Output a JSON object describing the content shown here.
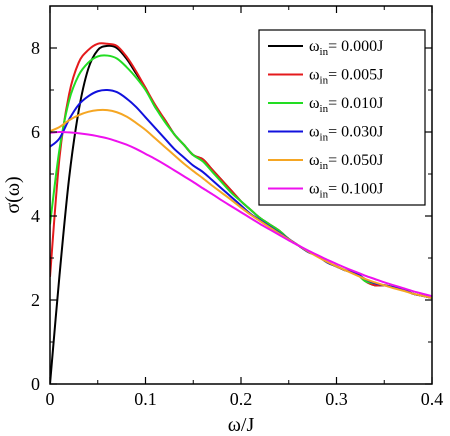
{
  "chart_data": {
    "type": "line",
    "title": "",
    "xlabel": "ω/J",
    "ylabel": "σ(ω)",
    "xlim": [
      0,
      0.4
    ],
    "ylim": [
      0,
      9
    ],
    "xticks": [
      0,
      0.1,
      0.2,
      0.3,
      0.4
    ],
    "xtick_labels": [
      "0",
      "0.1",
      "0.2",
      "0.3",
      "0.4"
    ],
    "yticks": [
      0,
      2,
      4,
      6,
      8
    ],
    "ytick_labels": [
      "0",
      "2",
      "4",
      "6",
      "8"
    ],
    "grid": false,
    "legend_position": "top-right",
    "legend_prefix": "ω",
    "legend_subscript": "in",
    "series": [
      {
        "name": "= 0.000J",
        "color": "#000000",
        "x": [
          0.0,
          0.01,
          0.02,
          0.03,
          0.04,
          0.05,
          0.06,
          0.07,
          0.08,
          0.09,
          0.1,
          0.11,
          0.12,
          0.13,
          0.14,
          0.15,
          0.16,
          0.17,
          0.18,
          0.19,
          0.2,
          0.21,
          0.22,
          0.23,
          0.24,
          0.25,
          0.26,
          0.27,
          0.28,
          0.29,
          0.3,
          0.31,
          0.32,
          0.33,
          0.34,
          0.35,
          0.36,
          0.37,
          0.38,
          0.39,
          0.4
        ],
        "y": [
          0.0,
          2.6,
          4.9,
          6.5,
          7.5,
          7.95,
          8.05,
          8.0,
          7.75,
          7.4,
          7.05,
          6.6,
          6.3,
          5.95,
          5.7,
          5.45,
          5.35,
          5.1,
          4.85,
          4.6,
          4.35,
          4.15,
          3.95,
          3.8,
          3.65,
          3.45,
          3.3,
          3.15,
          3.05,
          2.9,
          2.8,
          2.7,
          2.65,
          2.45,
          2.35,
          2.35,
          2.3,
          2.25,
          2.15,
          2.1,
          2.05
        ]
      },
      {
        "name": "= 0.005J",
        "color": "#e41a1c",
        "x": [
          0.0,
          0.01,
          0.02,
          0.03,
          0.04,
          0.05,
          0.06,
          0.07,
          0.08,
          0.09,
          0.1,
          0.11,
          0.12,
          0.13,
          0.14,
          0.15,
          0.16,
          0.17,
          0.18,
          0.19,
          0.2,
          0.21,
          0.22,
          0.23,
          0.24,
          0.25,
          0.26,
          0.27,
          0.28,
          0.29,
          0.3,
          0.31,
          0.32,
          0.33,
          0.34,
          0.35,
          0.36,
          0.37,
          0.38,
          0.39,
          0.4
        ],
        "y": [
          2.55,
          5.4,
          6.9,
          7.65,
          7.95,
          8.1,
          8.1,
          8.05,
          7.8,
          7.45,
          7.05,
          6.65,
          6.3,
          5.95,
          5.7,
          5.45,
          5.35,
          5.1,
          4.85,
          4.6,
          4.35,
          4.15,
          3.95,
          3.8,
          3.65,
          3.45,
          3.3,
          3.15,
          3.05,
          2.9,
          2.8,
          2.7,
          2.65,
          2.45,
          2.35,
          2.35,
          2.3,
          2.25,
          2.15,
          2.1,
          2.05
        ]
      },
      {
        "name": "= 0.010J",
        "color": "#22dd22",
        "x": [
          0.0,
          0.01,
          0.02,
          0.03,
          0.04,
          0.05,
          0.06,
          0.07,
          0.08,
          0.09,
          0.1,
          0.11,
          0.12,
          0.13,
          0.14,
          0.15,
          0.16,
          0.17,
          0.18,
          0.19,
          0.2,
          0.21,
          0.22,
          0.23,
          0.24,
          0.25,
          0.26,
          0.27,
          0.28,
          0.29,
          0.3,
          0.31,
          0.32,
          0.33,
          0.34,
          0.35,
          0.36,
          0.37,
          0.38,
          0.39,
          0.4
        ],
        "y": [
          3.8,
          5.6,
          6.75,
          7.35,
          7.65,
          7.8,
          7.82,
          7.75,
          7.55,
          7.3,
          7.0,
          6.6,
          6.25,
          5.95,
          5.7,
          5.45,
          5.3,
          5.05,
          4.8,
          4.55,
          4.35,
          4.15,
          3.95,
          3.8,
          3.65,
          3.45,
          3.3,
          3.15,
          3.05,
          2.9,
          2.8,
          2.7,
          2.65,
          2.45,
          2.4,
          2.35,
          2.3,
          2.25,
          2.15,
          2.1,
          2.05
        ]
      },
      {
        "name": "= 0.030J",
        "color": "#1111dd",
        "x": [
          0.0,
          0.01,
          0.02,
          0.03,
          0.04,
          0.05,
          0.06,
          0.07,
          0.08,
          0.09,
          0.1,
          0.11,
          0.12,
          0.13,
          0.14,
          0.15,
          0.16,
          0.17,
          0.18,
          0.19,
          0.2,
          0.21,
          0.22,
          0.23,
          0.24,
          0.25,
          0.26,
          0.27,
          0.28,
          0.29,
          0.3,
          0.31,
          0.32,
          0.33,
          0.34,
          0.35,
          0.36,
          0.37,
          0.38,
          0.39,
          0.4
        ],
        "y": [
          5.65,
          5.85,
          6.3,
          6.65,
          6.85,
          6.97,
          7.0,
          6.95,
          6.8,
          6.6,
          6.35,
          6.1,
          5.85,
          5.6,
          5.4,
          5.2,
          5.05,
          4.85,
          4.65,
          4.45,
          4.25,
          4.05,
          3.9,
          3.75,
          3.6,
          3.45,
          3.3,
          3.15,
          3.05,
          2.9,
          2.8,
          2.7,
          2.65,
          2.5,
          2.4,
          2.35,
          2.3,
          2.25,
          2.15,
          2.1,
          2.05
        ]
      },
      {
        "name": "= 0.050J",
        "color": "#f5a623",
        "x": [
          0.0,
          0.01,
          0.02,
          0.03,
          0.04,
          0.05,
          0.06,
          0.07,
          0.08,
          0.09,
          0.1,
          0.11,
          0.12,
          0.13,
          0.14,
          0.15,
          0.16,
          0.17,
          0.18,
          0.19,
          0.2,
          0.21,
          0.22,
          0.23,
          0.24,
          0.25,
          0.26,
          0.27,
          0.28,
          0.29,
          0.3,
          0.31,
          0.32,
          0.33,
          0.34,
          0.35,
          0.36,
          0.37,
          0.38,
          0.39,
          0.4
        ],
        "y": [
          6.02,
          6.12,
          6.28,
          6.4,
          6.48,
          6.52,
          6.52,
          6.47,
          6.37,
          6.22,
          6.05,
          5.85,
          5.65,
          5.45,
          5.25,
          5.07,
          4.9,
          4.72,
          4.55,
          4.38,
          4.2,
          4.03,
          3.88,
          3.73,
          3.58,
          3.44,
          3.3,
          3.16,
          3.03,
          2.91,
          2.8,
          2.7,
          2.6,
          2.5,
          2.42,
          2.35,
          2.28,
          2.22,
          2.15,
          2.1,
          2.05
        ]
      },
      {
        "name": "= 0.100J",
        "color": "#ee11ee",
        "x": [
          0.0,
          0.01,
          0.02,
          0.03,
          0.04,
          0.05,
          0.06,
          0.07,
          0.08,
          0.09,
          0.1,
          0.11,
          0.12,
          0.13,
          0.14,
          0.15,
          0.16,
          0.17,
          0.18,
          0.19,
          0.2,
          0.21,
          0.22,
          0.23,
          0.24,
          0.25,
          0.26,
          0.27,
          0.28,
          0.29,
          0.3,
          0.31,
          0.32,
          0.33,
          0.34,
          0.35,
          0.36,
          0.37,
          0.38,
          0.39,
          0.4
        ],
        "y": [
          5.98,
          6.0,
          5.99,
          5.97,
          5.94,
          5.9,
          5.85,
          5.78,
          5.7,
          5.6,
          5.48,
          5.36,
          5.23,
          5.09,
          4.95,
          4.81,
          4.66,
          4.52,
          4.37,
          4.23,
          4.09,
          3.95,
          3.81,
          3.68,
          3.55,
          3.42,
          3.3,
          3.18,
          3.07,
          2.96,
          2.86,
          2.76,
          2.67,
          2.58,
          2.5,
          2.42,
          2.35,
          2.28,
          2.21,
          2.15,
          2.09
        ]
      }
    ]
  }
}
